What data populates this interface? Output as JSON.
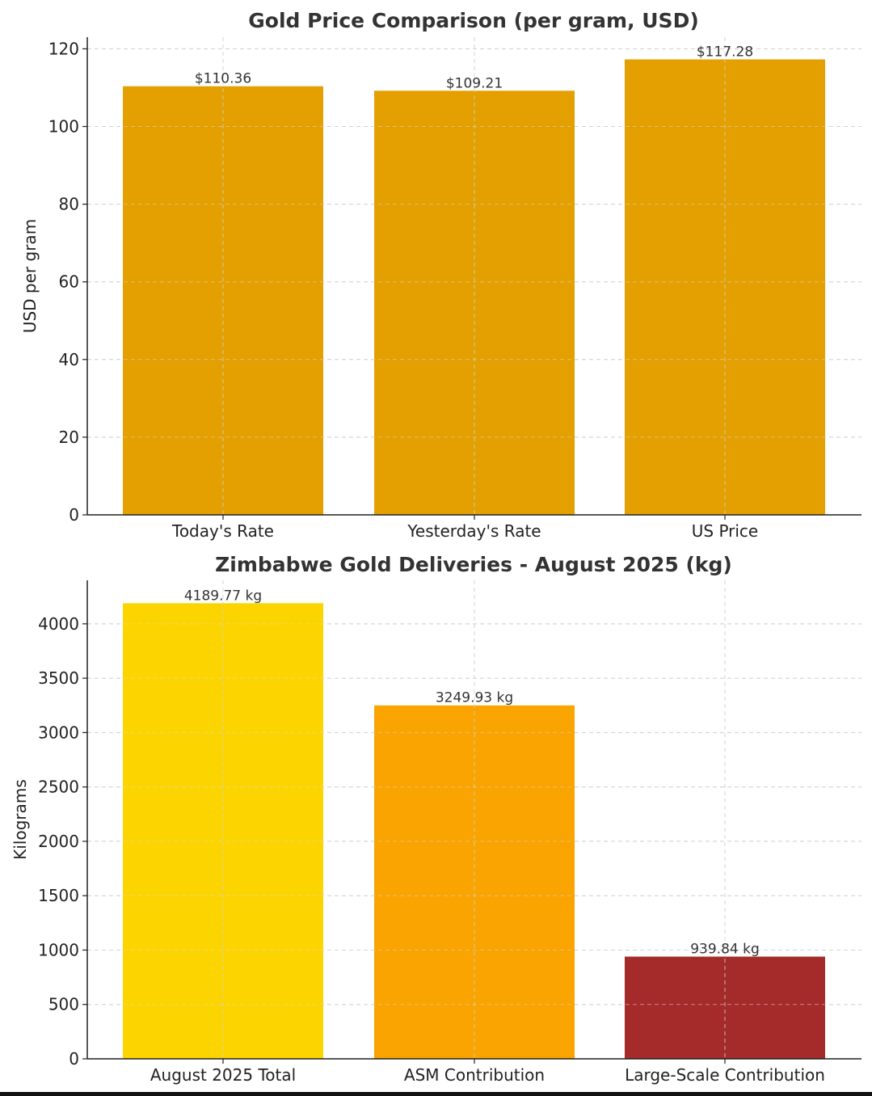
{
  "chart_data": [
    {
      "type": "bar",
      "title": "Gold Price Comparison (per gram, USD)",
      "xlabel": "",
      "ylabel": "USD per gram",
      "categories": [
        "Today's Rate",
        "Yesterday's Rate",
        "US Price"
      ],
      "values": [
        110.36,
        109.21,
        117.28
      ],
      "value_labels": [
        "$110.36",
        "$109.21",
        "$117.28"
      ],
      "colors": [
        "#E49F00",
        "#E49F00",
        "#E49F00"
      ],
      "ylim": [
        0,
        123
      ],
      "yticks": [
        0,
        20,
        40,
        60,
        80,
        100,
        120
      ],
      "grid": true
    },
    {
      "type": "bar",
      "title": "Zimbabwe Gold Deliveries - August 2025 (kg)",
      "xlabel": "",
      "ylabel": "Kilograms",
      "categories": [
        "August 2025 Total",
        "ASM Contribution",
        "Large-Scale Contribution"
      ],
      "values": [
        4189.77,
        3249.93,
        939.84
      ],
      "value_labels": [
        "4189.77 kg",
        "3249.93 kg",
        "939.84 kg"
      ],
      "colors": [
        "#FCD500",
        "#F9A400",
        "#A52A2A"
      ],
      "ylim": [
        0,
        4400
      ],
      "yticks": [
        0,
        500,
        1000,
        1500,
        2000,
        2500,
        3000,
        3500,
        4000
      ],
      "grid": true
    }
  ]
}
